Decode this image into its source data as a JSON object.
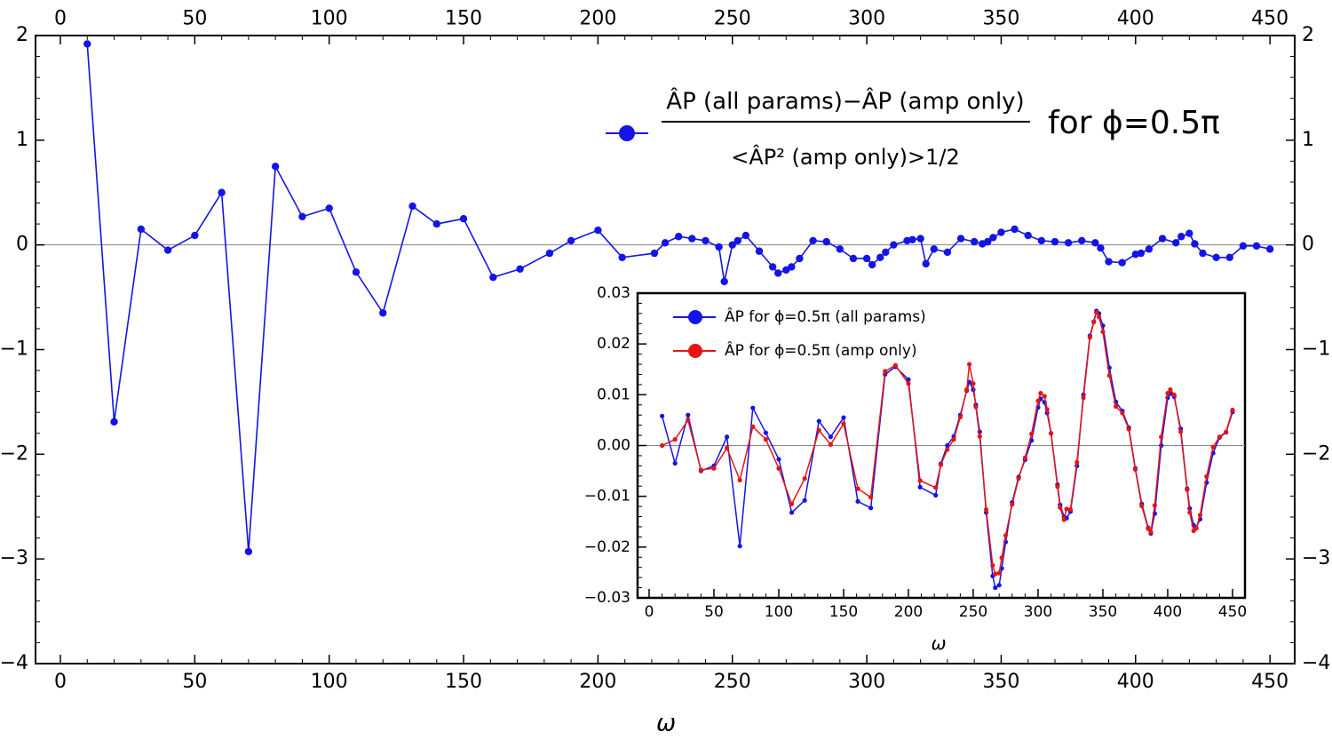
{
  "chart_data": [
    {
      "type": "line",
      "x_label": "ω",
      "x": [
        10,
        20,
        30,
        40,
        50,
        60,
        70,
        80,
        90,
        100,
        110,
        120,
        131,
        140,
        150,
        161,
        171,
        182,
        190,
        200,
        209,
        221,
        225,
        230,
        235,
        240,
        245,
        247,
        250,
        252,
        255,
        260,
        265,
        267,
        270,
        272,
        275,
        280,
        285,
        290,
        295,
        300,
        302,
        305,
        307,
        310,
        315,
        317,
        320,
        322,
        325,
        330,
        335,
        340,
        343,
        345,
        347,
        350,
        355,
        360,
        365,
        370,
        375,
        380,
        385,
        387,
        390,
        395,
        400,
        402,
        405,
        410,
        415,
        417,
        420,
        422,
        425,
        430,
        435,
        440,
        445,
        450
      ],
      "series": [
        {
          "name": "ÂP (all params)−ÂP (amp only)",
          "color": "#1414e6",
          "values": [
            1.92,
            -1.69,
            0.15,
            -0.05,
            0.09,
            0.5,
            -2.93,
            0.75,
            0.27,
            0.35,
            -0.26,
            -0.65,
            0.37,
            0.2,
            0.25,
            -0.31,
            -0.23,
            -0.08,
            0.04,
            0.14,
            -0.12,
            -0.08,
            0.02,
            0.08,
            0.06,
            0.04,
            -0.02,
            -0.35,
            0.0,
            0.04,
            0.09,
            -0.06,
            -0.21,
            -0.27,
            -0.24,
            -0.21,
            -0.13,
            0.04,
            0.03,
            -0.04,
            -0.13,
            -0.13,
            -0.19,
            -0.12,
            -0.07,
            0.0,
            0.04,
            0.05,
            0.06,
            -0.18,
            -0.04,
            -0.07,
            0.06,
            0.03,
            0.01,
            0.03,
            0.07,
            0.12,
            0.15,
            0.09,
            0.04,
            0.03,
            0.02,
            0.04,
            0.02,
            -0.03,
            -0.16,
            -0.17,
            -0.09,
            -0.08,
            -0.04,
            0.06,
            0.02,
            0.08,
            0.11,
            0.01,
            -0.08,
            -0.12,
            -0.12,
            -0.01,
            -0.01,
            -0.04
          ]
        }
      ],
      "legend_denominator": "<ÂP² (amp only)>1/2",
      "legend_suffix": "for ϕ=0.5π",
      "xlim": [
        -9.25,
        459.2
      ],
      "xticks": [
        0,
        50,
        100,
        150,
        200,
        250,
        300,
        350,
        400,
        450
      ],
      "ylim": [
        -4,
        2
      ],
      "yticks": [
        {
          "value": -4,
          "label": "−4"
        },
        {
          "value": -3,
          "label": "−3"
        },
        {
          "value": -2,
          "label": "−2"
        },
        {
          "value": -1,
          "label": "−1"
        },
        0,
        1,
        2
      ]
    },
    {
      "type": "line",
      "x_label": "ω",
      "x": [
        10,
        20,
        30,
        40,
        50,
        60,
        70,
        80,
        90,
        100,
        110,
        120,
        131,
        140,
        150,
        161,
        171,
        182,
        190,
        200,
        209,
        221,
        225,
        230,
        235,
        240,
        245,
        247,
        250,
        252,
        255,
        260,
        265,
        267,
        270,
        272,
        275,
        280,
        285,
        290,
        295,
        300,
        302,
        305,
        307,
        310,
        315,
        317,
        320,
        322,
        325,
        330,
        335,
        340,
        343,
        345,
        347,
        350,
        355,
        360,
        365,
        370,
        375,
        380,
        385,
        387,
        390,
        395,
        400,
        402,
        405,
        410,
        415,
        417,
        420,
        422,
        425,
        430,
        435,
        440,
        445,
        450
      ],
      "series": [
        {
          "name": "ÂP for ϕ=0.5π (all params)",
          "color": "#1414e6",
          "values": [
            0.0058,
            -0.0035,
            0.006,
            -0.005,
            -0.004,
            0.0017,
            -0.0198,
            0.0074,
            0.0025,
            -0.0027,
            -0.0132,
            -0.0108,
            0.0048,
            0.0017,
            0.0055,
            -0.011,
            -0.0123,
            0.014,
            0.0155,
            0.013,
            -0.0082,
            -0.0098,
            -0.0036,
            0.0,
            0.0018,
            0.006,
            0.0108,
            0.0125,
            0.011,
            0.008,
            0.0027,
            -0.0132,
            -0.0257,
            -0.028,
            -0.0275,
            -0.0242,
            -0.019,
            -0.0112,
            -0.0062,
            -0.0028,
            0.001,
            0.0075,
            0.0092,
            0.0085,
            0.0064,
            0.0024,
            -0.0077,
            -0.0117,
            -0.014,
            -0.0143,
            -0.013,
            -0.004,
            0.01,
            0.0216,
            0.0244,
            0.0265,
            0.026,
            0.0236,
            0.0153,
            0.0086,
            0.0068,
            0.0035,
            -0.0045,
            -0.0115,
            -0.0162,
            -0.0173,
            -0.0134,
            0.0,
            0.0094,
            0.0102,
            0.0096,
            0.0033,
            -0.0085,
            -0.0124,
            -0.0157,
            -0.0162,
            -0.0145,
            -0.0073,
            -0.0015,
            0.0016,
            0.0026,
            0.0066
          ]
        },
        {
          "name": "ÂP for ϕ=0.5π (amp only)",
          "color": "#e61414",
          "values": [
            0.0,
            0.0012,
            0.005,
            -0.0048,
            -0.0045,
            -0.0005,
            -0.0068,
            0.0037,
            0.0012,
            -0.0045,
            -0.0115,
            -0.0065,
            0.003,
            0.0002,
            0.0043,
            -0.0085,
            -0.0102,
            0.0146,
            0.0158,
            0.0122,
            -0.0069,
            -0.0083,
            -0.0038,
            -0.0008,
            0.0012,
            0.0056,
            0.011,
            0.016,
            0.0122,
            0.0076,
            0.0018,
            -0.0126,
            -0.0236,
            -0.0253,
            -0.0251,
            -0.0221,
            -0.0177,
            -0.0116,
            -0.0065,
            -0.0024,
            0.0023,
            0.0088,
            0.0103,
            0.0097,
            0.0071,
            0.0024,
            -0.0081,
            -0.0122,
            -0.0146,
            -0.0125,
            -0.0126,
            -0.0033,
            0.0094,
            0.0213,
            0.0243,
            0.0262,
            0.0253,
            0.0224,
            0.0138,
            0.0077,
            0.0064,
            0.0032,
            -0.0047,
            -0.0119,
            -0.0164,
            -0.017,
            -0.0118,
            0.0017,
            0.0103,
            0.011,
            0.01,
            0.0027,
            -0.0087,
            -0.0132,
            -0.0168,
            -0.0163,
            -0.0137,
            -0.0061,
            -0.0003,
            0.0017,
            0.0027,
            0.007
          ]
        }
      ],
      "xlim": [
        -8.9,
        459.6
      ],
      "xticks": [
        0,
        50,
        100,
        150,
        200,
        250,
        300,
        350,
        400,
        450
      ],
      "ylim": [
        -0.03,
        0.03
      ],
      "yticks": [
        {
          "value": -0.03,
          "label": "−0.03"
        },
        {
          "value": -0.02,
          "label": "−0.02"
        },
        {
          "value": -0.01,
          "label": "−0.01"
        },
        {
          "value": 0,
          "label": "0.00"
        },
        0.01,
        0.02,
        0.03
      ]
    }
  ]
}
